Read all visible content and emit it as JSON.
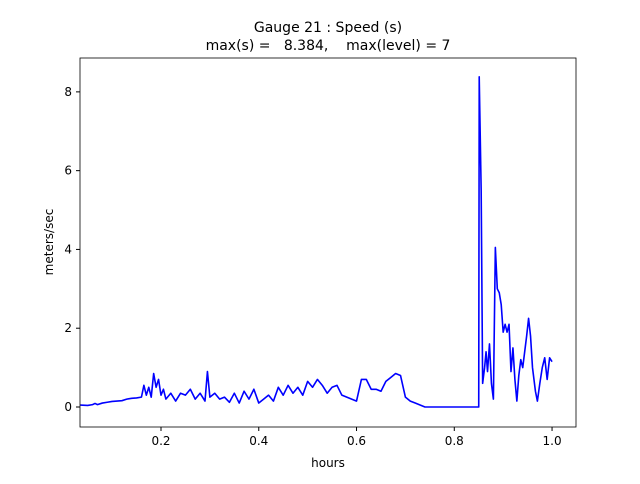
{
  "chart_data": {
    "type": "line",
    "title": "Gauge 21 : Speed (s)",
    "subtitle": "max(s) =   8.384,    max(level) = 7",
    "x_label": "hours",
    "y_label": "meters/sec",
    "x": [
      0.035,
      0.05,
      0.06,
      0.065,
      0.07,
      0.08,
      0.09,
      0.1,
      0.11,
      0.12,
      0.13,
      0.14,
      0.15,
      0.16,
      0.165,
      0.17,
      0.175,
      0.18,
      0.185,
      0.19,
      0.195,
      0.2,
      0.205,
      0.21,
      0.22,
      0.23,
      0.24,
      0.25,
      0.26,
      0.27,
      0.28,
      0.29,
      0.295,
      0.3,
      0.31,
      0.32,
      0.33,
      0.34,
      0.35,
      0.36,
      0.37,
      0.38,
      0.39,
      0.4,
      0.41,
      0.42,
      0.43,
      0.44,
      0.45,
      0.46,
      0.47,
      0.48,
      0.49,
      0.5,
      0.51,
      0.52,
      0.53,
      0.54,
      0.55,
      0.56,
      0.57,
      0.58,
      0.59,
      0.6,
      0.61,
      0.62,
      0.63,
      0.64,
      0.65,
      0.66,
      0.67,
      0.68,
      0.69,
      0.7,
      0.71,
      0.72,
      0.73,
      0.74,
      0.8,
      0.85,
      0.851,
      0.855,
      0.858,
      0.862,
      0.865,
      0.868,
      0.872,
      0.876,
      0.88,
      0.884,
      0.888,
      0.892,
      0.896,
      0.9,
      0.904,
      0.908,
      0.912,
      0.916,
      0.92,
      0.924,
      0.928,
      0.932,
      0.936,
      0.94,
      0.944,
      0.948,
      0.952,
      0.956,
      0.96,
      0.966,
      0.97,
      0.975,
      0.98,
      0.985,
      0.99,
      0.995,
      1.0
    ],
    "series": [
      {
        "name": "speed",
        "color": "#0000ff",
        "values": [
          0.05,
          0.04,
          0.06,
          0.09,
          0.06,
          0.1,
          0.12,
          0.14,
          0.15,
          0.16,
          0.2,
          0.22,
          0.23,
          0.25,
          0.55,
          0.3,
          0.5,
          0.25,
          0.85,
          0.5,
          0.7,
          0.3,
          0.45,
          0.2,
          0.35,
          0.15,
          0.35,
          0.3,
          0.45,
          0.2,
          0.35,
          0.15,
          0.9,
          0.25,
          0.35,
          0.2,
          0.25,
          0.12,
          0.35,
          0.1,
          0.4,
          0.2,
          0.45,
          0.1,
          0.2,
          0.3,
          0.15,
          0.5,
          0.3,
          0.55,
          0.35,
          0.5,
          0.3,
          0.65,
          0.5,
          0.7,
          0.55,
          0.35,
          0.5,
          0.55,
          0.3,
          0.25,
          0.2,
          0.15,
          0.7,
          0.7,
          0.45,
          0.45,
          0.4,
          0.65,
          0.75,
          0.85,
          0.8,
          0.25,
          0.15,
          0.1,
          0.05,
          0,
          0,
          0,
          8.384,
          5.5,
          0.6,
          1.0,
          1.4,
          0.9,
          1.6,
          0.6,
          0.2,
          4.05,
          3.0,
          2.9,
          2.6,
          1.9,
          2.1,
          1.9,
          2.1,
          0.9,
          1.5,
          0.7,
          0.15,
          0.8,
          1.2,
          1.0,
          1.4,
          1.8,
          2.25,
          1.8,
          1.0,
          0.4,
          0.15,
          0.6,
          1.0,
          1.25,
          0.7,
          1.25,
          1.15
        ]
      }
    ],
    "xlim": [
      0.0343,
      1.049
    ],
    "ylim": [
      -0.508,
      8.86
    ],
    "xticks": [
      0.2,
      0.4,
      0.6,
      0.8,
      {
        "value": 1,
        "label": "1.0"
      }
    ],
    "yticks": [
      0,
      2,
      4,
      6,
      8
    ]
  }
}
